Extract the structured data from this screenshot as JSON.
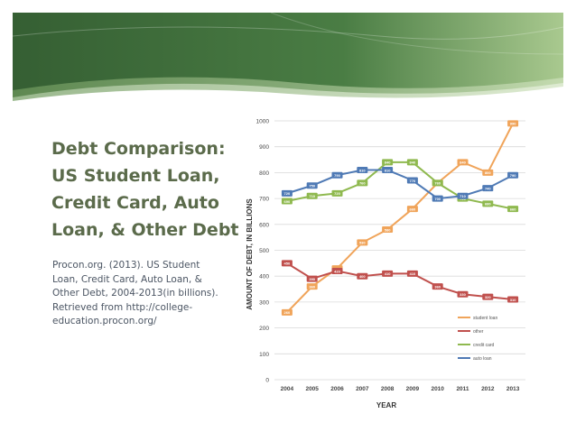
{
  "slide": {
    "title_lines": [
      "Debt Comparison:",
      "US Student Loan,",
      "Credit Card, Auto",
      "Loan, & Other Debt"
    ],
    "citation_lines": [
      "Procon.org. (2013). US Student",
      "Loan, Credit Card, Auto Loan, &",
      "Other Debt, 2004-2013(in billions).",
      "Retrieved from http://college-",
      "education.procon.org/"
    ]
  },
  "colors": {
    "banner_dark": "#3d6b3a",
    "banner_light": "#9fbf85",
    "title": "#5b6b4b",
    "citation": "#4b5563"
  },
  "chart_data": {
    "type": "line",
    "xlabel": "YEAR",
    "ylabel": "AMOUNT OF DEBT, IN BILLIONS",
    "ylim": [
      0,
      1000
    ],
    "yticks": [
      0,
      100,
      200,
      300,
      400,
      500,
      600,
      700,
      800,
      900,
      1000
    ],
    "grid": true,
    "legend_position": "bottom-right",
    "x": [
      "2004",
      "2005",
      "2006",
      "2007",
      "2008",
      "2009",
      "2010",
      "2011",
      "2012",
      "2013"
    ],
    "series": [
      {
        "name": "student loan",
        "color": "#f0a45a",
        "values": [
          260,
          360,
          430,
          530,
          580,
          660,
          760,
          840,
          800,
          990
        ]
      },
      {
        "name": "other",
        "color": "#c0504d",
        "values": [
          450,
          390,
          420,
          400,
          410,
          410,
          360,
          330,
          320,
          310
        ]
      },
      {
        "name": "credit card",
        "color": "#8fb94f",
        "values": [
          690,
          710,
          720,
          760,
          840,
          840,
          760,
          700,
          680,
          660
        ]
      },
      {
        "name": "auto loan",
        "color": "#4f7ab5",
        "values": [
          720,
          750,
          790,
          810,
          810,
          770,
          700,
          710,
          740,
          790
        ]
      }
    ]
  }
}
